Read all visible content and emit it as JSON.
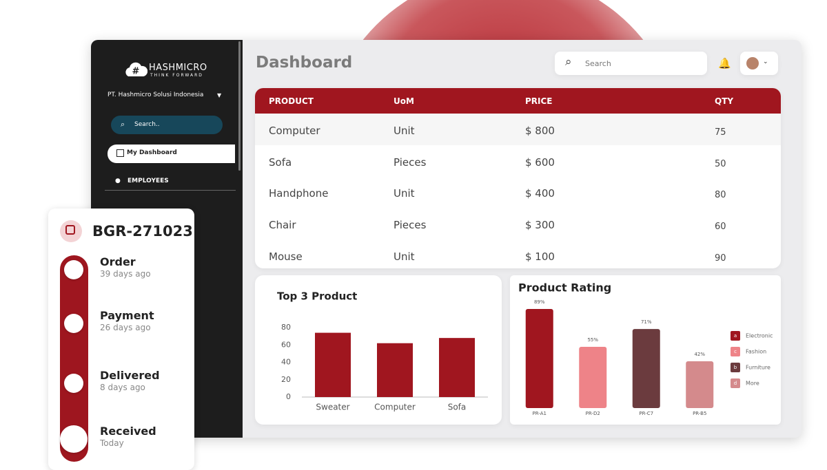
{
  "sidebar": {
    "brand": "HASHMICRO",
    "tagline": "THINK FORWARD",
    "company": "PT. Hashmicro Solusi Indonesia",
    "search_placeholder": "Search..",
    "menu": [
      "My Dashboard",
      "EMPLOYEES"
    ]
  },
  "header": {
    "title": "Dashboard",
    "search_placeholder": "Search"
  },
  "table": {
    "columns": [
      "PRODUCT",
      "UoM",
      "PRICE",
      "QTY"
    ],
    "rows": [
      [
        "Computer",
        "Unit",
        "$ 800",
        "75"
      ],
      [
        "Sofa",
        "Pieces",
        "$ 600",
        "50"
      ],
      [
        "Handphone",
        "Unit",
        "$ 400",
        "80"
      ],
      [
        "Chair",
        "Pieces",
        "$ 300",
        "60"
      ],
      [
        "Mouse",
        "Unit",
        "$ 100",
        "90"
      ]
    ]
  },
  "tracker": {
    "id": "BGR-271023",
    "steps": [
      {
        "label": "Order",
        "time": "39 days ago"
      },
      {
        "label": "Payment",
        "time": "26 days ago"
      },
      {
        "label": "Delivered",
        "time": "8 days ago"
      },
      {
        "label": "Received",
        "time": "Today"
      }
    ]
  },
  "chart_data": [
    {
      "type": "bar",
      "title": "Top 3 Product",
      "categories": [
        "Sweater",
        "Computer",
        "Sofa"
      ],
      "values": [
        74,
        62,
        68
      ],
      "color": "#a0161f",
      "ylim": [
        0,
        80
      ],
      "yticks": [
        0,
        20,
        40,
        60,
        80
      ]
    },
    {
      "type": "bar",
      "title": "Product Rating",
      "categories": [
        "PR-A1",
        "PR-D2",
        "PR-C7",
        "PR-B5"
      ],
      "values": [
        89,
        55,
        71,
        42
      ],
      "value_labels": [
        "89%",
        "55%",
        "71%",
        "42%"
      ],
      "colors": [
        "#a0161f",
        "#ee8388",
        "#6b3b3e",
        "#d48a8c"
      ],
      "legend": [
        {
          "symbol": "a",
          "name": "Electronic",
          "color": "#a0161f"
        },
        {
          "symbol": "c",
          "name": "Fashion",
          "color": "#ee8388"
        },
        {
          "symbol": "b",
          "name": "Furniture",
          "color": "#6b3b3e"
        },
        {
          "symbol": "d",
          "name": "More",
          "color": "#d48a8c"
        }
      ]
    }
  ]
}
